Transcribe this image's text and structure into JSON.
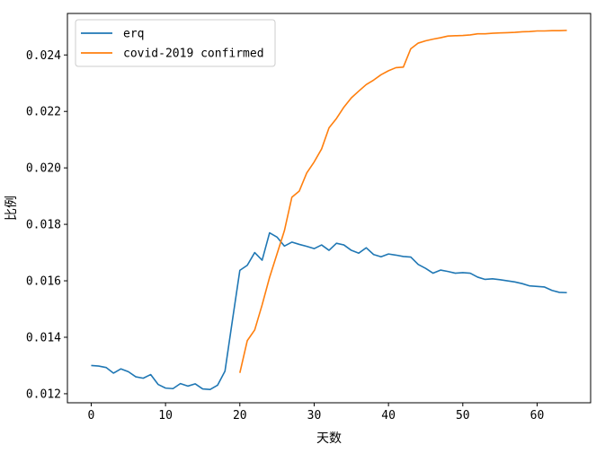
{
  "chart_data": {
    "type": "line",
    "title": "",
    "xlabel": "天数",
    "ylabel": "比例",
    "xlim": [
      -3.2,
      67.2
    ],
    "ylim": [
      0.01168,
      0.02547
    ],
    "xticks": [
      0,
      10,
      20,
      30,
      40,
      50,
      60
    ],
    "yticks": [
      0.012,
      0.014,
      0.016,
      0.018,
      0.02,
      0.022,
      0.024
    ],
    "ytick_labels": [
      "0.012",
      "0.014",
      "0.016",
      "0.018",
      "0.020",
      "0.022",
      "0.024"
    ],
    "grid": false,
    "legend_position": "top-left",
    "series": [
      {
        "name": "erq",
        "color": "#1f77b4",
        "x": [
          0,
          1,
          2,
          3,
          4,
          5,
          6,
          7,
          8,
          9,
          10,
          11,
          12,
          13,
          14,
          15,
          16,
          17,
          18,
          19,
          20,
          21,
          22,
          23,
          24,
          25,
          26,
          27,
          28,
          29,
          30,
          31,
          32,
          33,
          34,
          35,
          36,
          37,
          38,
          39,
          40,
          41,
          42,
          43,
          44,
          45,
          46,
          47,
          48,
          49,
          50,
          51,
          52,
          53,
          54,
          55,
          56,
          57,
          58,
          59,
          60,
          61,
          62,
          63,
          64
        ],
        "y": [
          0.013,
          0.01298,
          0.01293,
          0.01273,
          0.01288,
          0.01278,
          0.0126,
          0.01255,
          0.01268,
          0.01233,
          0.0122,
          0.01218,
          0.01236,
          0.01227,
          0.01235,
          0.01217,
          0.01215,
          0.0123,
          0.0128,
          0.0146,
          0.01637,
          0.01655,
          0.017,
          0.01673,
          0.0177,
          0.01755,
          0.01723,
          0.01737,
          0.01729,
          0.01722,
          0.01714,
          0.01727,
          0.01708,
          0.01733,
          0.01727,
          0.01708,
          0.01698,
          0.01717,
          0.01693,
          0.01685,
          0.01695,
          0.01691,
          0.01686,
          0.01684,
          0.01658,
          0.01644,
          0.01627,
          0.01638,
          0.01633,
          0.01627,
          0.01629,
          0.01627,
          0.01613,
          0.01605,
          0.01607,
          0.01604,
          0.016,
          0.01596,
          0.0159,
          0.01582,
          0.0158,
          0.01578,
          0.01566,
          0.01559,
          0.01558
        ]
      },
      {
        "name": "covid-2019 confirmed",
        "color": "#ff7f0e",
        "x": [
          20,
          21,
          22,
          23,
          24,
          25,
          26,
          27,
          28,
          29,
          30,
          31,
          32,
          33,
          34,
          35,
          36,
          37,
          38,
          39,
          40,
          41,
          42,
          43,
          44,
          45,
          46,
          47,
          48,
          49,
          50,
          51,
          52,
          53,
          54,
          55,
          56,
          57,
          58,
          59,
          60,
          61,
          62,
          63,
          64
        ],
        "y": [
          0.01274,
          0.01388,
          0.01426,
          0.01515,
          0.01612,
          0.01695,
          0.01778,
          0.01896,
          0.01918,
          0.01982,
          0.02021,
          0.02067,
          0.02142,
          0.02175,
          0.02215,
          0.02248,
          0.02272,
          0.02295,
          0.02311,
          0.0233,
          0.02344,
          0.02355,
          0.02357,
          0.02422,
          0.02442,
          0.0245,
          0.02456,
          0.02461,
          0.02467,
          0.02468,
          0.02469,
          0.02471,
          0.02475,
          0.02475,
          0.02477,
          0.02478,
          0.02479,
          0.0248,
          0.02482,
          0.02483,
          0.02485,
          0.02485,
          0.02486,
          0.02486,
          0.02487
        ]
      }
    ]
  }
}
